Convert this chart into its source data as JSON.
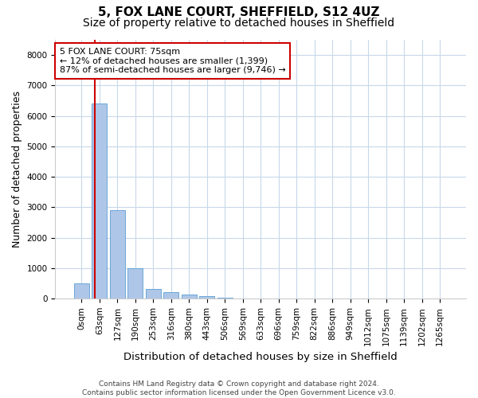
{
  "title_line1": "5, FOX LANE COURT, SHEFFIELD, S12 4UZ",
  "title_line2": "Size of property relative to detached houses in Sheffield",
  "xlabel": "Distribution of detached houses by size in Sheffield",
  "ylabel": "Number of detached properties",
  "footnote": "Contains HM Land Registry data © Crown copyright and database right 2024.\nContains public sector information licensed under the Open Government Licence v3.0.",
  "bar_color": "#aec6e8",
  "bar_edge_color": "#5a9fd4",
  "grid_color": "#c8d8ea",
  "annotation_box_color": "#cc0000",
  "property_line_color": "#cc0000",
  "categories": [
    "0sqm",
    "63sqm",
    "127sqm",
    "190sqm",
    "253sqm",
    "316sqm",
    "380sqm",
    "443sqm",
    "506sqm",
    "569sqm",
    "633sqm",
    "696sqm",
    "759sqm",
    "822sqm",
    "886sqm",
    "949sqm",
    "1012sqm",
    "1075sqm",
    "1139sqm",
    "1202sqm",
    "1265sqm"
  ],
  "values": [
    500,
    6400,
    2900,
    1000,
    330,
    220,
    130,
    80,
    40,
    0,
    0,
    0,
    0,
    0,
    0,
    0,
    0,
    0,
    0,
    0,
    0
  ],
  "ylim": [
    0,
    8500
  ],
  "yticks": [
    0,
    1000,
    2000,
    3000,
    4000,
    5000,
    6000,
    7000,
    8000
  ],
  "annotation_text": "5 FOX LANE COURT: 75sqm\n← 12% of detached houses are smaller (1,399)\n87% of semi-detached houses are larger (9,746) →",
  "red_line_x": 0.575,
  "title_fontsize": 11,
  "subtitle_fontsize": 10,
  "axis_label_fontsize": 9,
  "tick_fontsize": 7.5,
  "footnote_fontsize": 6.5,
  "annotation_fontsize": 8
}
